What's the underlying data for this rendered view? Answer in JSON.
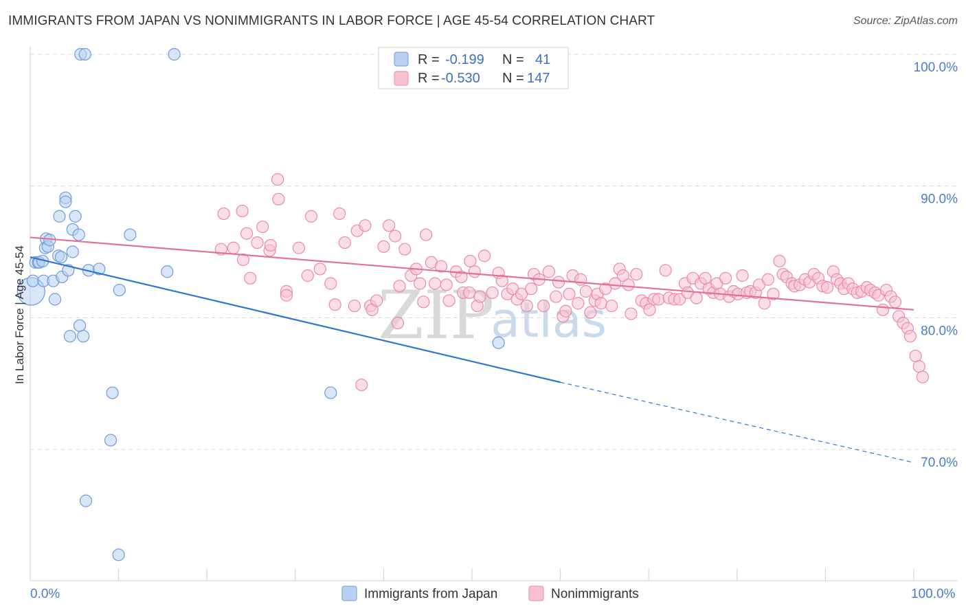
{
  "title": "IMMIGRANTS FROM JAPAN VS NONIMMIGRANTS IN LABOR FORCE | AGE 45-54 CORRELATION CHART",
  "source": "Source: ZipAtlas.com",
  "colors": {
    "blue_fill": "#b8d1f3",
    "blue_stroke": "#6e9bd8",
    "blue_line": "#2f76d0",
    "pink_fill": "#f6c2d2",
    "pink_stroke": "#e98aa8",
    "pink_line": "#e3709a",
    "grid": "#d8d8d8",
    "tick_text": "#4a7cc7"
  },
  "legend": {
    "r_label": "R =",
    "n_label": "N =",
    "series1_r": "-0.199",
    "series1_n": "41",
    "series2_r": "-0.530",
    "series2_n": "147"
  },
  "watermark": {
    "zip": "ZIP",
    "atlas": "atlas"
  },
  "chart_data": {
    "type": "scatter",
    "title": "IMMIGRANTS FROM JAPAN VS NONIMMIGRANTS IN LABOR FORCE | AGE 45-54 CORRELATION CHART",
    "xlabel": "",
    "ylabel": "In Labor Force | Age 45-54",
    "xlim": [
      0,
      100
    ],
    "ylim": [
      60,
      101
    ],
    "x_tick_labels": [
      "0.0%",
      "100.0%"
    ],
    "y_ticks": [
      {
        "value": 70,
        "label": "70.0%"
      },
      {
        "value": 80,
        "label": "80.0%"
      },
      {
        "value": 90,
        "label": "90.0%"
      },
      {
        "value": 100,
        "label": "100.0%"
      }
    ],
    "grid": true,
    "series": [
      {
        "name": "Immigrants from Japan",
        "color": "blue",
        "R": -0.199,
        "N": 41,
        "trend": {
          "x0": 0,
          "y0": 84.6,
          "x1": 60,
          "y1": 75.1,
          "dash_to_x": 100,
          "dash_to_y": 69.0
        },
        "points": [
          [
            0.1,
            82.0,
            "big"
          ],
          [
            0.3,
            82.8
          ],
          [
            0.6,
            84.2
          ],
          [
            0.9,
            84.2
          ],
          [
            1.0,
            84.2
          ],
          [
            1.4,
            84.3
          ],
          [
            1.5,
            82.8
          ],
          [
            1.7,
            85.3
          ],
          [
            1.8,
            86.0
          ],
          [
            2.0,
            85.4
          ],
          [
            2.2,
            85.9
          ],
          [
            2.6,
            82.8
          ],
          [
            2.8,
            81.4
          ],
          [
            3.2,
            84.7
          ],
          [
            3.3,
            87.7
          ],
          [
            3.5,
            84.6
          ],
          [
            3.6,
            83.1
          ],
          [
            4.0,
            89.1
          ],
          [
            4.0,
            88.8
          ],
          [
            4.3,
            83.6
          ],
          [
            4.5,
            78.6
          ],
          [
            4.8,
            86.7
          ],
          [
            4.8,
            85.0
          ],
          [
            5.1,
            87.7
          ],
          [
            5.5,
            86.3
          ],
          [
            5.6,
            79.4
          ],
          [
            5.7,
            100.0
          ],
          [
            6.0,
            78.6
          ],
          [
            6.2,
            100.0
          ],
          [
            6.6,
            83.6
          ],
          [
            7.8,
            83.7
          ],
          [
            9.3,
            74.3
          ],
          [
            9.1,
            70.7
          ],
          [
            6.3,
            66.1
          ],
          [
            10.0,
            62.0
          ],
          [
            10.1,
            82.1
          ],
          [
            11.3,
            86.3
          ],
          [
            15.5,
            83.5
          ],
          [
            16.3,
            100.0
          ],
          [
            34.0,
            74.3
          ],
          [
            53.0,
            78.1
          ]
        ]
      },
      {
        "name": "Nonimmigrants",
        "color": "pink",
        "R": -0.53,
        "N": 147,
        "trend": {
          "x0": 0,
          "y0": 86.1,
          "x1": 100,
          "y1": 80.6
        },
        "points": [
          [
            21.6,
            85.2
          ],
          [
            21.9,
            87.9
          ],
          [
            23.0,
            85.3
          ],
          [
            24.0,
            88.1
          ],
          [
            24.1,
            84.4
          ],
          [
            24.5,
            86.4
          ],
          [
            24.9,
            83.0
          ],
          [
            25.7,
            85.7
          ],
          [
            26.3,
            86.9
          ],
          [
            27.1,
            85.1
          ],
          [
            27.2,
            85.5
          ],
          [
            28.0,
            90.5
          ],
          [
            28.1,
            89.0
          ],
          [
            29.0,
            82.0
          ],
          [
            30.4,
            85.3
          ],
          [
            31.4,
            83.2
          ],
          [
            31.8,
            87.7
          ],
          [
            32.8,
            83.7
          ],
          [
            34.0,
            82.6
          ],
          [
            34.5,
            81.0
          ],
          [
            35.0,
            87.9
          ],
          [
            35.6,
            85.7
          ],
          [
            36.7,
            80.9
          ],
          [
            37.0,
            86.6
          ],
          [
            37.9,
            87.0
          ],
          [
            38.5,
            80.9
          ],
          [
            38.7,
            80.6
          ],
          [
            39.2,
            81.3
          ],
          [
            40.0,
            85.4
          ],
          [
            40.6,
            87.0
          ],
          [
            41.3,
            86.2
          ],
          [
            41.6,
            79.6
          ],
          [
            41.8,
            82.4
          ],
          [
            42.4,
            85.2
          ],
          [
            43.1,
            83.2
          ],
          [
            43.7,
            83.7
          ],
          [
            44.1,
            82.6
          ],
          [
            44.8,
            86.3
          ],
          [
            44.5,
            81.2
          ],
          [
            45.4,
            84.2
          ],
          [
            45.8,
            82.6
          ],
          [
            46.5,
            83.9
          ],
          [
            47.1,
            82.5
          ],
          [
            47.4,
            81.3
          ],
          [
            48.2,
            83.5
          ],
          [
            48.8,
            83.1
          ],
          [
            49.0,
            81.9
          ],
          [
            49.8,
            84.3
          ],
          [
            49.7,
            81.9
          ],
          [
            50.3,
            83.5
          ],
          [
            50.6,
            80.9
          ],
          [
            50.9,
            81.6
          ],
          [
            51.4,
            84.7
          ],
          [
            52.3,
            81.9
          ],
          [
            53.0,
            83.4
          ],
          [
            53.4,
            82.8
          ],
          [
            54.0,
            81.8
          ],
          [
            54.6,
            82.2
          ],
          [
            55.1,
            81.4
          ],
          [
            55.6,
            81.8
          ],
          [
            56.2,
            80.9
          ],
          [
            56.7,
            82.2
          ],
          [
            57.0,
            83.3
          ],
          [
            57.6,
            82.9
          ],
          [
            58.1,
            80.9
          ],
          [
            58.7,
            83.5
          ],
          [
            59.5,
            81.6
          ],
          [
            59.8,
            82.7
          ],
          [
            60.3,
            80.1
          ],
          [
            60.6,
            80.5
          ],
          [
            61.0,
            81.8
          ],
          [
            61.4,
            83.2
          ],
          [
            62.0,
            81.1
          ],
          [
            62.3,
            82.9
          ],
          [
            62.9,
            82.0
          ],
          [
            63.4,
            80.4
          ],
          [
            63.9,
            81.3
          ],
          [
            64.2,
            81.8
          ],
          [
            64.6,
            81.1
          ],
          [
            65.1,
            82.2
          ],
          [
            65.8,
            80.9
          ],
          [
            66.2,
            82.6
          ],
          [
            66.7,
            83.7
          ],
          [
            67.1,
            83.2
          ],
          [
            67.7,
            82.5
          ],
          [
            68.0,
            80.3
          ],
          [
            68.6,
            83.3
          ],
          [
            69.2,
            81.3
          ],
          [
            69.7,
            81.1
          ],
          [
            70.1,
            80.6
          ],
          [
            70.6,
            81.4
          ],
          [
            71.1,
            81.4
          ],
          [
            71.9,
            83.6
          ],
          [
            72.3,
            81.5
          ],
          [
            72.9,
            81.4
          ],
          [
            73.5,
            81.4
          ],
          [
            74.1,
            82.6
          ],
          [
            74.4,
            81.9
          ],
          [
            75.0,
            83.0
          ],
          [
            75.4,
            81.5
          ],
          [
            75.9,
            82.6
          ],
          [
            76.4,
            83.0
          ],
          [
            76.8,
            82.2
          ],
          [
            77.3,
            81.9
          ],
          [
            77.7,
            82.6
          ],
          [
            78.1,
            81.8
          ],
          [
            78.7,
            83.0
          ],
          [
            79.1,
            81.6
          ],
          [
            79.6,
            82.0
          ],
          [
            80.1,
            81.8
          ],
          [
            80.6,
            83.2
          ],
          [
            81.1,
            81.9
          ],
          [
            81.5,
            82.0
          ],
          [
            82.1,
            81.9
          ],
          [
            82.5,
            82.5
          ],
          [
            83.1,
            81.1
          ],
          [
            83.5,
            82.9
          ],
          [
            84.1,
            81.8
          ],
          [
            84.8,
            84.3
          ],
          [
            85.2,
            83.3
          ],
          [
            85.6,
            83.1
          ],
          [
            86.2,
            82.6
          ],
          [
            86.5,
            82.4
          ],
          [
            87.1,
            82.5
          ],
          [
            87.7,
            82.9
          ],
          [
            88.2,
            82.7
          ],
          [
            88.7,
            83.3
          ],
          [
            89.2,
            83.0
          ],
          [
            89.7,
            82.4
          ],
          [
            90.2,
            82.3
          ],
          [
            90.9,
            83.5
          ],
          [
            91.3,
            82.9
          ],
          [
            91.7,
            82.6
          ],
          [
            92.1,
            82.2
          ],
          [
            92.6,
            82.6
          ],
          [
            93.1,
            82.2
          ],
          [
            93.6,
            81.9
          ],
          [
            94.1,
            82.0
          ],
          [
            94.7,
            82.3
          ],
          [
            95.1,
            82.1
          ],
          [
            95.6,
            81.9
          ],
          [
            96.0,
            81.7
          ],
          [
            96.5,
            80.6
          ],
          [
            96.9,
            82.1
          ],
          [
            97.4,
            81.6
          ],
          [
            97.9,
            81.2
          ],
          [
            98.3,
            80.1
          ],
          [
            98.8,
            79.6
          ],
          [
            99.3,
            79.2
          ],
          [
            99.6,
            78.6
          ],
          [
            100.2,
            77.1
          ],
          [
            100.6,
            76.3
          ],
          [
            101.0,
            75.5
          ]
        ]
      }
    ]
  },
  "extra_pink_outliers": [
    [
      29.0,
      81.7
    ],
    [
      37.5,
      74.9
    ]
  ],
  "bottom_legend": {
    "series1": "Immigrants from Japan",
    "series2": "Nonimmigrants"
  }
}
